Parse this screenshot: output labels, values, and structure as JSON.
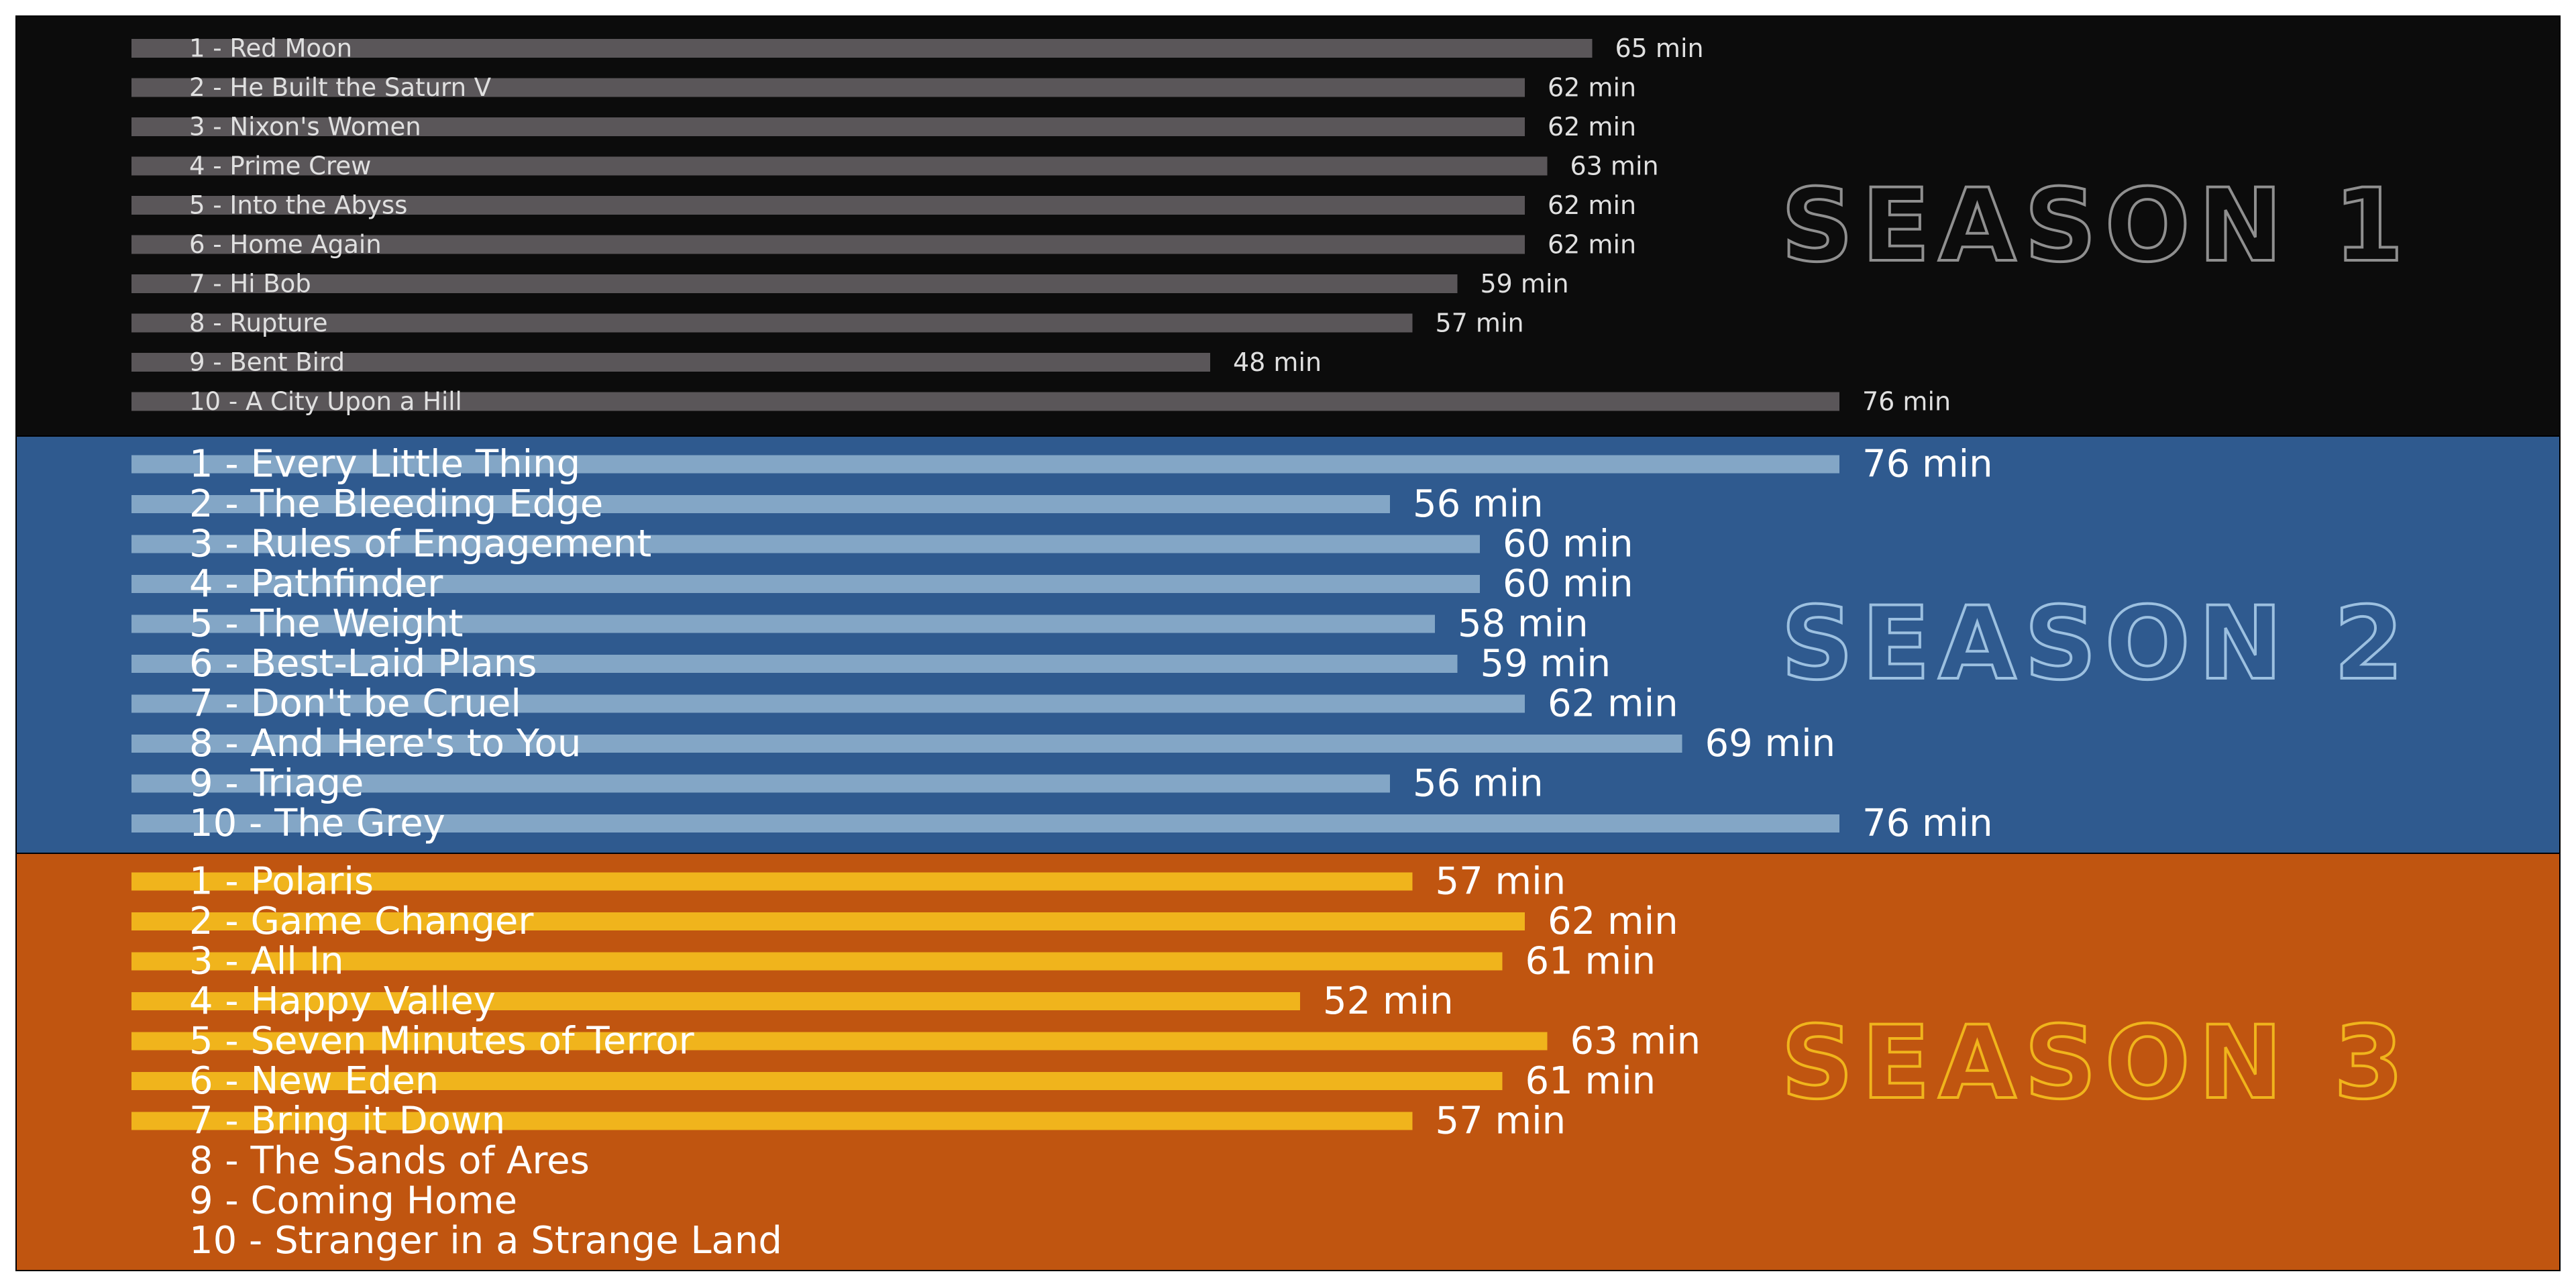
{
  "chart_data": [
    {
      "type": "bar",
      "orientation": "horizontal",
      "title": "SEASON 1",
      "colors": {
        "background": "#0c0c0c",
        "bar": "#5a5659",
        "text": "#e0e0e0",
        "title": "#8f8f8f"
      },
      "x_max": 78,
      "value_suffix": " min",
      "categories": [
        "1 - Red Moon",
        "2 - He Built the Saturn V",
        "3 - Nixon's Women",
        "4 - Prime Crew",
        "5 - Into the Abyss",
        "6 - Home Again",
        "7 - Hi Bob",
        "8 - Rupture",
        "9 - Bent Bird",
        "10 - A City Upon a Hill"
      ],
      "values": [
        65,
        62,
        62,
        63,
        62,
        62,
        59,
        57,
        48,
        76
      ]
    },
    {
      "type": "bar",
      "orientation": "horizontal",
      "title": "SEASON 2",
      "colors": {
        "background": "#2f5a8f",
        "bar": "#83a6c6",
        "text": "#ffffff",
        "title": "#9cc0e0"
      },
      "x_max": 78,
      "value_suffix": " min",
      "categories": [
        "1 - Every Little Thing",
        "2 - The Bleeding Edge",
        "3 - Rules of Engagement",
        "4 - Pathfinder",
        "5 - The Weight",
        "6 - Best-Laid Plans",
        "7 - Don't be Cruel",
        "8 - And Here's to You",
        "9 - Triage",
        "10 - The Grey"
      ],
      "values": [
        76,
        56,
        60,
        60,
        58,
        59,
        62,
        69,
        56,
        76
      ]
    },
    {
      "type": "bar",
      "orientation": "horizontal",
      "title": "SEASON 3",
      "colors": {
        "background": "#c05510",
        "bar": "#f0b41c",
        "text": "#ffffff",
        "title": "#f0b41c"
      },
      "x_max": 78,
      "value_suffix": " min",
      "categories": [
        "1 - Polaris",
        "2 - Game Changer",
        "3 - All In",
        "4 - Happy Valley",
        "5 - Seven Minutes of Terror",
        "6 - New Eden",
        "7 - Bring it Down",
        "8 - The Sands of Ares",
        "9 - Coming Home",
        "10 - Stranger in a Strange Land"
      ],
      "values": [
        57,
        62,
        61,
        52,
        63,
        61,
        57,
        null,
        null,
        null
      ]
    }
  ]
}
